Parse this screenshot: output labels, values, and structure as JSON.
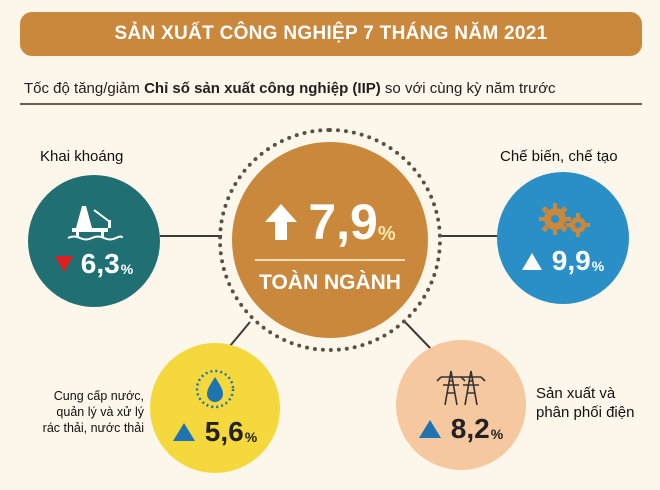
{
  "header": {
    "title": "SẢN XUẤT CÔNG NGHIỆP 7 THÁNG NĂM 2021",
    "subtitle_prefix": "Tốc độ tăng/giảm ",
    "subtitle_bold": "Chỉ số sản xuất công nghiệp (IIP)",
    "subtitle_suffix": " so với cùng kỳ năm trước"
  },
  "total": {
    "value": "7,9",
    "unit": "%",
    "label": "TOÀN NGÀNH",
    "trend": "up"
  },
  "sectors": {
    "mining": {
      "label": "Khai khoáng",
      "value": "6,3",
      "unit": "%",
      "trend": "down",
      "icon": "oil-rig-icon"
    },
    "manufacturing": {
      "label": "Chế biến, chế tạo",
      "value": "9,9",
      "unit": "%",
      "trend": "up",
      "icon": "gears-icon"
    },
    "water": {
      "label_lines": [
        "Cung cấp nước,",
        "quản lý và xử lý",
        "rác thải, nước thải"
      ],
      "value": "5,6",
      "unit": "%",
      "trend": "up",
      "icon": "water-drop-icon"
    },
    "electricity": {
      "label_lines": [
        "Sản xuất và",
        "phân phối điện"
      ],
      "value": "8,2",
      "unit": "%",
      "trend": "up",
      "icon": "power-tower-icon"
    }
  },
  "colors": {
    "accent": "#c9883b",
    "mining": "#1f6f73",
    "manufacturing": "#2a8fc6",
    "water": "#f5d93c",
    "electricity": "#f6c8a0",
    "decrease": "#e02020"
  }
}
